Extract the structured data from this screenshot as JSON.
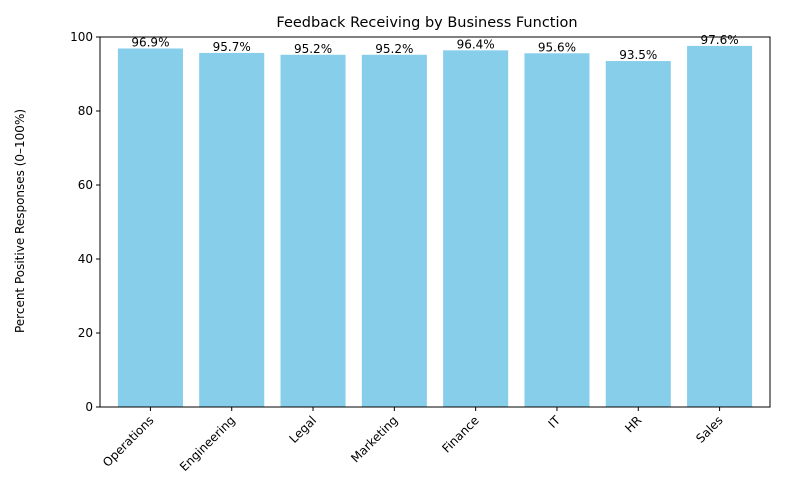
{
  "chart_data": {
    "type": "bar",
    "title": "Feedback Receiving by Business Function",
    "xlabel": "",
    "ylabel": "Percent Positive Responses (0–100%)",
    "categories": [
      "Operations",
      "Engineering",
      "Legal",
      "Marketing",
      "Finance",
      "IT",
      "HR",
      "Sales"
    ],
    "values": [
      96.9,
      95.7,
      95.2,
      95.2,
      96.4,
      95.6,
      93.5,
      97.6
    ],
    "value_labels": [
      "96.9%",
      "95.7%",
      "95.2%",
      "95.2%",
      "96.4%",
      "95.6%",
      "93.5%",
      "97.6%"
    ],
    "ylim": [
      0,
      100
    ],
    "yticks": [
      0,
      20,
      40,
      60,
      80,
      100
    ],
    "ytick_labels": [
      "0",
      "20",
      "40",
      "60",
      "80",
      "100"
    ],
    "bar_color": "#87ceeb",
    "grid": false,
    "legend": "none"
  }
}
